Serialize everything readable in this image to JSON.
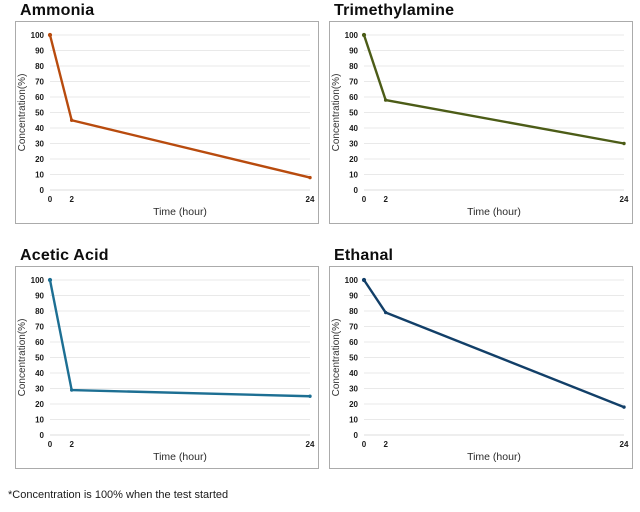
{
  "page": {
    "footnote": "*Concentration is 100% when the test started"
  },
  "chart_data": [
    {
      "type": "line",
      "title": "Ammonia",
      "x": [
        0,
        2,
        24
      ],
      "values": [
        100,
        45,
        8
      ],
      "color": "#b84b0e",
      "xlabel": "Time (hour)",
      "ylabel": "Concentration(%)",
      "ylim": [
        0,
        100
      ],
      "xlim": [
        0,
        24
      ],
      "ytick_step": 10,
      "xticks": [
        0,
        2,
        24
      ],
      "grid": "horizontal",
      "legend": "none"
    },
    {
      "type": "line",
      "title": "Trimethylamine",
      "x": [
        0,
        2,
        24
      ],
      "values": [
        100,
        58,
        30
      ],
      "color": "#4c5c17",
      "xlabel": "Time (hour)",
      "ylabel": "Concentration(%)",
      "ylim": [
        0,
        100
      ],
      "xlim": [
        0,
        24
      ],
      "ytick_step": 10,
      "xticks": [
        0,
        2,
        24
      ],
      "grid": "horizontal",
      "legend": "none"
    },
    {
      "type": "line",
      "title": "Acetic Acid",
      "x": [
        0,
        2,
        24
      ],
      "values": [
        100,
        29,
        25
      ],
      "color": "#1d6f93",
      "xlabel": "Time (hour)",
      "ylabel": "Concentration(%)",
      "ylim": [
        0,
        100
      ],
      "xlim": [
        0,
        24
      ],
      "ytick_step": 10,
      "xticks": [
        0,
        2,
        24
      ],
      "grid": "horizontal",
      "legend": "none"
    },
    {
      "type": "line",
      "title": "Ethanal",
      "x": [
        0,
        2,
        24
      ],
      "values": [
        100,
        79,
        18
      ],
      "color": "#123f68",
      "xlabel": "Time (hour)",
      "ylabel": "Concentration(%)",
      "ylim": [
        0,
        100
      ],
      "xlim": [
        0,
        24
      ],
      "ytick_step": 10,
      "xticks": [
        0,
        2,
        24
      ],
      "grid": "horizontal",
      "legend": "none"
    }
  ]
}
